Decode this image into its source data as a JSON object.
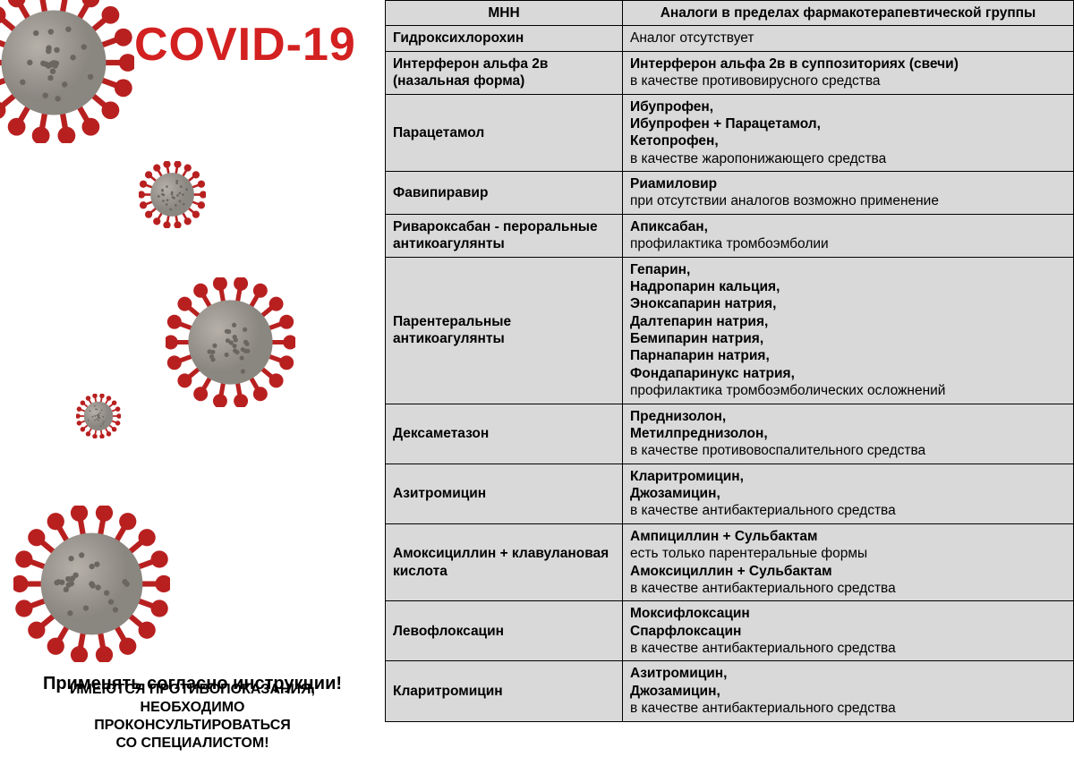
{
  "title": "COVID-19",
  "instruction": "Применять согласно инструкции!",
  "warning_l1": "ИМЕЮТСЯ ПРОТИВОПОКАЗАНИЯ,",
  "warning_l2": "НЕОБХОДИМО",
  "warning_l3": "ПРОКОНСУЛЬТИРОВАТЬСЯ",
  "warning_l4": "СО СПЕЦИАЛИСТОМ!",
  "colors": {
    "title": "#d32020",
    "cell_bg": "#d9d9d9",
    "border": "#000000",
    "virus_body": "#8a8680",
    "virus_spike": "#b82020"
  },
  "table": {
    "headers": [
      "МНН",
      "Аналоги в пределах фармакотерапевтической группы"
    ],
    "rows": [
      {
        "mnn": "Гидроксихлорохин",
        "analogs_bold": [],
        "analogs_plain": [
          "Аналог отсутствует"
        ]
      },
      {
        "mnn": "Интерферон альфа 2в (назальная форма)",
        "analogs_bold": [
          "Интерферон альфа 2в в суппозиториях (свечи)"
        ],
        "analogs_plain": [
          "в качестве противовирусного средства"
        ]
      },
      {
        "mnn": "Парацетамол",
        "analogs_bold": [
          "Ибупрофен,",
          "Ибупрофен + Парацетамол,",
          "Кетопрофен,"
        ],
        "analogs_plain": [
          "в качестве жаропонижающего средства"
        ]
      },
      {
        "mnn": "Фавипиравир",
        "analogs_bold": [
          "Риамиловир"
        ],
        "analogs_plain": [
          "при отсутствии аналогов возможно применение"
        ]
      },
      {
        "mnn": "Ривароксабан - пероральные антикоагулянты",
        "analogs_bold": [
          "Апиксабан,"
        ],
        "analogs_plain": [
          "профилактика тромбоэмболии"
        ]
      },
      {
        "mnn": "Парентеральные антикоагулянты",
        "analogs_bold": [
          "Гепарин,",
          "Надропарин кальция,",
          "Эноксапарин натрия,",
          "Далтепарин натрия,",
          "Бемипарин натрия,",
          "Парнапарин натрия,",
          "Фондапаринукс натрия,"
        ],
        "analogs_plain": [
          "профилактика тромбоэмболических осложнений"
        ]
      },
      {
        "mnn": "Дексаметазон",
        "analogs_bold": [
          "Преднизолон,",
          "Метилпреднизолон,"
        ],
        "analogs_plain": [
          "в качестве противовоспалительного средства"
        ]
      },
      {
        "mnn": "Азитромицин",
        "analogs_bold": [
          "Кларитромицин,",
          "Джозамицин,"
        ],
        "analogs_plain": [
          "в качестве антибактериального средства"
        ]
      },
      {
        "mnn": "Амоксициллин + клавулановая кислота",
        "analogs_bold": [
          "Ампициллин + Сульбактам"
        ],
        "analogs_plain_mid": [
          "есть только парентеральные формы"
        ],
        "analogs_bold2": [
          "Амоксициллин + Сульбактам"
        ],
        "analogs_plain": [
          "в качестве антибактериального средства"
        ]
      },
      {
        "mnn": "Левофлоксацин",
        "analogs_bold": [
          "Моксифлоксацин",
          "Спарфлоксацин"
        ],
        "analogs_plain": [
          "в качестве антибактериального средства"
        ]
      },
      {
        "mnn": "Кларитромицин",
        "analogs_bold": [
          "Азитромицин,",
          "Джозамицин,"
        ],
        "analogs_plain": [
          "в качестве антибактериального средства"
        ]
      }
    ]
  }
}
